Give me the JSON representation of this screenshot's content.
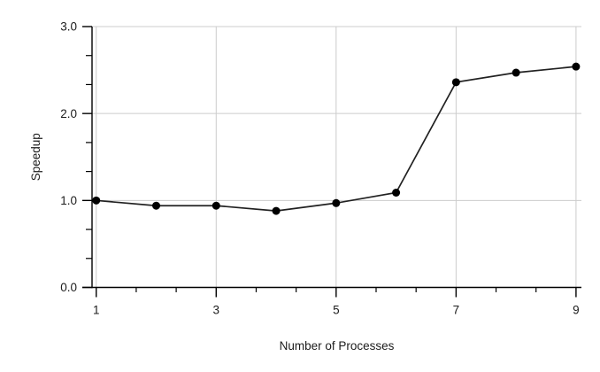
{
  "chart_data": {
    "type": "line",
    "title": "",
    "xlabel": "Number of Processes",
    "ylabel": "Speedup",
    "x": [
      1,
      2,
      3,
      4,
      5,
      6,
      7,
      8,
      9
    ],
    "series": [
      {
        "name": "Speedup",
        "values": [
          1.0,
          0.94,
          0.94,
          0.88,
          0.97,
          1.09,
          2.36,
          2.47,
          2.54
        ]
      }
    ],
    "xticks": [
      1,
      3,
      5,
      7,
      9
    ],
    "xtick_labels": [
      "1",
      "3",
      "5",
      "7",
      "9"
    ],
    "yticks": [
      0,
      1,
      2,
      3
    ],
    "ytick_labels": [
      "0.0",
      "1.0",
      "2.0",
      "3.0"
    ],
    "x_minor_divisions": 3,
    "y_minor_divisions": 3,
    "xlim": [
      0.93,
      9.09
    ],
    "ylim": [
      0.0,
      3.0
    ],
    "grid": true,
    "legend": "none",
    "marker": "filled-circle",
    "colors": {
      "line": "#212121",
      "marker": "#000000",
      "grid": "#cccccc",
      "axis": "#000000",
      "text": "#1c1c1c",
      "background": "#ffffff"
    }
  }
}
